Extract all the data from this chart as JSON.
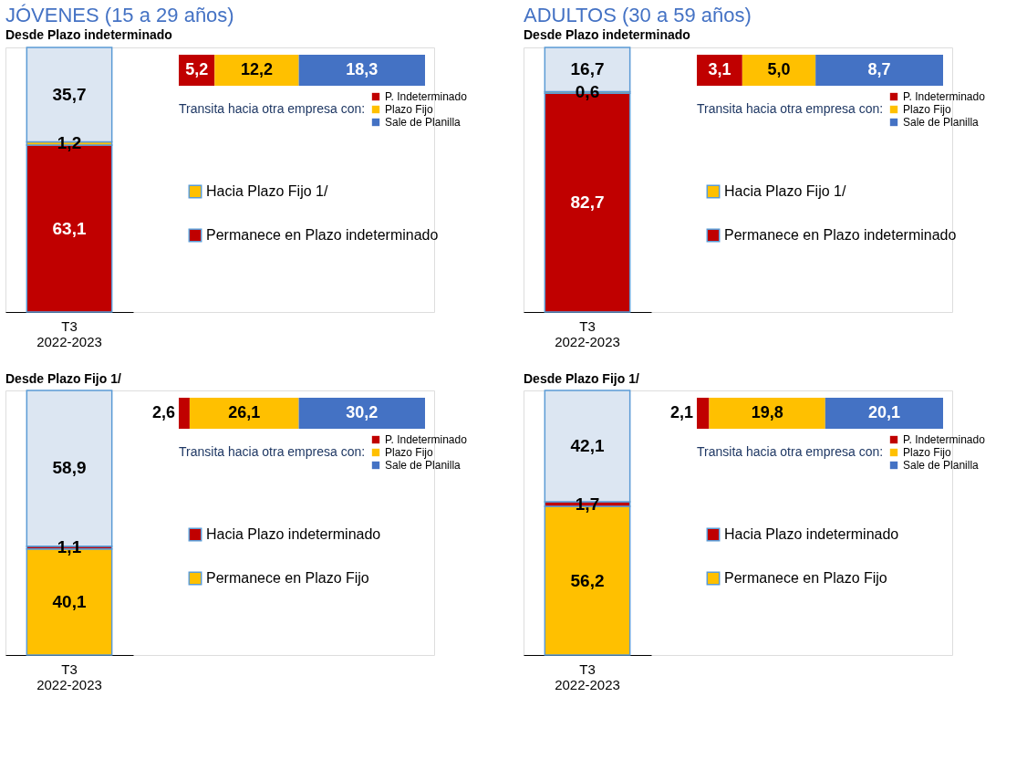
{
  "chart_data": [
    {
      "type": "bar",
      "stacked": true,
      "legend": "right",
      "title": "JÓVENES (15 a 29 años)",
      "subtitle": "Desde Plazo indeterminado",
      "categories": [
        "T3\n2022-2023"
      ],
      "series": [
        {
          "name": "Permanece en Plazo indeterminado",
          "color": "#c00000",
          "values": [
            63.1
          ],
          "value_labels": [
            "63,1"
          ]
        },
        {
          "name": "Hacia Plazo Fijo 1/",
          "color": "#ffc000",
          "values": [
            1.2
          ],
          "value_labels": [
            "1,2"
          ]
        },
        {
          "color": "#dce6f2",
          "values": [
            35.7
          ],
          "value_labels": [
            "35,7"
          ]
        }
      ]
    },
    {
      "type": "bar",
      "orientation": "horizontal",
      "stacked": true,
      "legend": "bottom",
      "legend_title": "Transita hacia otra empresa con:",
      "categories": [
        null
      ],
      "series": [
        {
          "name": "P. Indeterminado",
          "color": "#c00000",
          "values": [
            5.2
          ],
          "value_labels": [
            "5,2"
          ]
        },
        {
          "name": "Plazo Fijo",
          "color": "#ffc000",
          "values": [
            12.2
          ],
          "value_labels": [
            "12,2"
          ]
        },
        {
          "name": "Sale de Planilla",
          "color": "#4472c4",
          "values": [
            18.3
          ],
          "value_labels": [
            "18,3"
          ]
        }
      ]
    },
    {
      "type": "bar",
      "stacked": true,
      "legend": "right",
      "title": "ADULTOS (30 a 59 años)",
      "subtitle": "Desde Plazo indeterminado",
      "categories": [
        "T3\n2022-2023"
      ],
      "series": [
        {
          "name": "Permanece en Plazo indeterminado",
          "color": "#c00000",
          "values": [
            82.7
          ],
          "value_labels": [
            "82,7"
          ]
        },
        {
          "name": "Hacia Plazo Fijo 1/",
          "color": "#ffc000",
          "values": [
            0.6
          ],
          "value_labels": [
            "0,6"
          ]
        },
        {
          "color": "#dce6f2",
          "values": [
            16.7
          ],
          "value_labels": [
            "16,7"
          ]
        }
      ]
    },
    {
      "type": "bar",
      "orientation": "horizontal",
      "stacked": true,
      "legend": "bottom",
      "legend_title": "Transita hacia otra empresa con:",
      "categories": [
        null
      ],
      "series": [
        {
          "name": "P. Indeterminado",
          "color": "#c00000",
          "values": [
            3.1
          ],
          "value_labels": [
            "3,1"
          ]
        },
        {
          "name": "Plazo Fijo",
          "color": "#ffc000",
          "values": [
            5.0
          ],
          "value_labels": [
            "5,0"
          ]
        },
        {
          "name": "Sale de Planilla",
          "color": "#4472c4",
          "values": [
            8.7
          ],
          "value_labels": [
            "8,7"
          ]
        }
      ]
    },
    {
      "type": "bar",
      "stacked": true,
      "legend": "right",
      "title": "Desde Plazo Fijo 1/",
      "categories": [
        "T3\n2022-2023"
      ],
      "series": [
        {
          "name": "Permanece en Plazo Fijo",
          "color": "#ffc000",
          "values": [
            40.1
          ],
          "value_labels": [
            "40,1"
          ]
        },
        {
          "name": "Hacia Plazo indeterminado",
          "color": "#c00000",
          "values": [
            1.1
          ],
          "value_labels": [
            "1,1"
          ]
        },
        {
          "color": "#dce6f2",
          "values": [
            58.9
          ],
          "value_labels": [
            "58,9"
          ]
        }
      ]
    },
    {
      "type": "bar",
      "orientation": "horizontal",
      "stacked": true,
      "legend": "bottom",
      "legend_title": "Transita hacia otra empresa con:",
      "categories": [
        null
      ],
      "series": [
        {
          "name": "P. Indeterminado",
          "color": "#c00000",
          "values": [
            2.6
          ],
          "value_labels": [
            "2,6"
          ]
        },
        {
          "name": "Plazo Fijo",
          "color": "#ffc000",
          "values": [
            26.1
          ],
          "value_labels": [
            "26,1"
          ]
        },
        {
          "name": "Sale de Planilla",
          "color": "#4472c4",
          "values": [
            30.2
          ],
          "value_labels": [
            "30,2"
          ]
        }
      ]
    },
    {
      "type": "bar",
      "stacked": true,
      "legend": "right",
      "title": "Desde Plazo Fijo 1/",
      "categories": [
        "T3\n2022-2023"
      ],
      "series": [
        {
          "name": "Permanece en Plazo Fijo",
          "color": "#ffc000",
          "values": [
            56.2
          ],
          "value_labels": [
            "56,2"
          ]
        },
        {
          "name": "Hacia Plazo indeterminado",
          "color": "#c00000",
          "values": [
            1.7
          ],
          "value_labels": [
            "1,7"
          ]
        },
        {
          "color": "#dce6f2",
          "values": [
            42.1
          ],
          "value_labels": [
            "42,1"
          ]
        }
      ]
    },
    {
      "type": "bar",
      "orientation": "horizontal",
      "stacked": true,
      "legend": "bottom",
      "legend_title": "Transita hacia otra empresa con:",
      "categories": [
        null
      ],
      "series": [
        {
          "name": "P. Indeterminado",
          "color": "#c00000",
          "values": [
            2.1
          ],
          "value_labels": [
            "2,1"
          ]
        },
        {
          "name": "Plazo Fijo",
          "color": "#ffc000",
          "values": [
            19.8
          ],
          "value_labels": [
            "19,8"
          ]
        },
        {
          "name": "Sale de Planilla",
          "color": "#4472c4",
          "values": [
            20.1
          ],
          "value_labels": [
            "20,1"
          ]
        }
      ]
    }
  ]
}
